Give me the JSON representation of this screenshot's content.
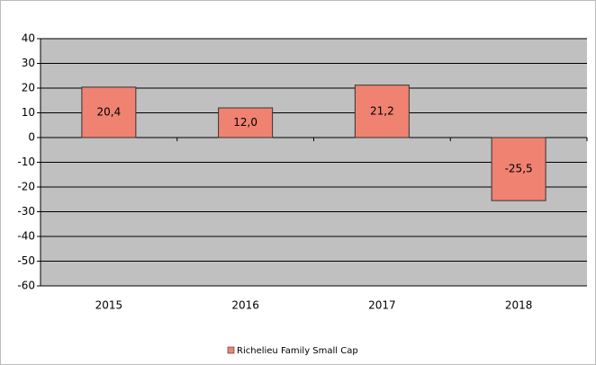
{
  "chart_data": {
    "type": "bar",
    "categories": [
      "2015",
      "2016",
      "2017",
      "2018"
    ],
    "series": [
      {
        "name": "Richelieu Family Small Cap",
        "color": "#f08272",
        "values": [
          20.4,
          12.0,
          21.2,
          -25.5
        ],
        "value_labels": [
          "20,4",
          "12,0",
          "21,2",
          "-25,5"
        ]
      }
    ],
    "ylim": [
      -60,
      40
    ],
    "yticks": [
      -60,
      -50,
      -40,
      -30,
      -20,
      -10,
      0,
      10,
      20,
      30,
      40
    ],
    "grid": true,
    "legend": "bottom"
  }
}
